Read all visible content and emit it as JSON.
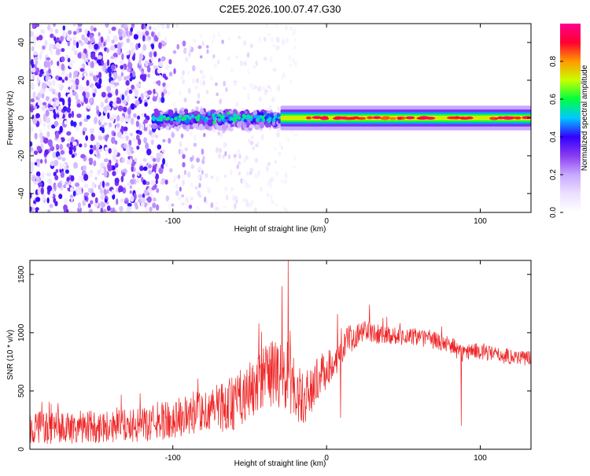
{
  "chart_data": [
    {
      "type": "heatmap",
      "title": "C2E5.2026.100.07.47.G30",
      "xlabel": "Height of straight line (km)",
      "ylabel": "Frequency (Hz)",
      "xlim": [
        -193,
        133
      ],
      "ylim": [
        -50,
        50
      ],
      "xticks": [
        -100,
        0,
        100
      ],
      "xtick_labels": [
        "-100",
        "0",
        "100"
      ],
      "yticks": [
        -40,
        -20,
        0,
        20,
        40
      ],
      "ytick_labels": [
        "-40",
        "-20",
        "0",
        "20",
        "40"
      ],
      "colorbar": {
        "label": "Normalized spectral amplitude",
        "range": [
          0,
          1
        ],
        "ticks": [
          0.0,
          0.2,
          0.4,
          0.6,
          0.8
        ],
        "tick_labels": [
          "0.0",
          "0.2",
          "0.4",
          "0.6",
          "0.8"
        ],
        "colormap_stops": [
          "#ffffff",
          "#ece0ff",
          "#c8a8ff",
          "#8a3cf0",
          "#3300ff",
          "#00c8ff",
          "#00ff40",
          "#c8ff00",
          "#ff9a00",
          "#ff0030",
          "#ff0090"
        ]
      },
      "regions": [
        {
          "name": "noise",
          "x_range": [
            -193,
            -105
          ],
          "freq_range": [
            -50,
            50
          ],
          "amplitude": 0.1
        },
        {
          "name": "sparse-noise",
          "x_range": [
            -105,
            -20
          ],
          "freq_range": [
            -50,
            50
          ],
          "amplitude": 0.04
        },
        {
          "name": "onset-cluster",
          "x_range": [
            -113,
            -30
          ],
          "freq_range": [
            -8,
            6
          ],
          "amplitude": 0.3
        },
        {
          "name": "signal-line",
          "x_range": [
            -30,
            133
          ],
          "freq_center": 0,
          "amplitude": 0.9
        }
      ]
    },
    {
      "type": "line",
      "xlabel": "Height of straight line (km)",
      "ylabel": "SNR (10 * v/v)",
      "xlim": [
        -193,
        133
      ],
      "ylim": [
        0,
        1620
      ],
      "xticks": [
        -100,
        0,
        100
      ],
      "xtick_labels": [
        "-100",
        "0",
        "100"
      ],
      "yticks": [
        0,
        500,
        1000,
        1500
      ],
      "ytick_labels": [
        "0",
        "500",
        "1000",
        "1500"
      ],
      "series": [
        {
          "name": "SNR",
          "color": "#ee2222",
          "x": [
            -193,
            -180,
            -160,
            -140,
            -120,
            -100,
            -80,
            -60,
            -45,
            -35,
            -25,
            -15,
            -5,
            5,
            15,
            25,
            35,
            50,
            65,
            80,
            88,
            95,
            110,
            133
          ],
          "y": [
            200,
            180,
            190,
            200,
            205,
            260,
            320,
            400,
            550,
            650,
            600,
            420,
            620,
            750,
            960,
            1010,
            990,
            970,
            950,
            900,
            820,
            850,
            810,
            780
          ],
          "spread": [
            230,
            230,
            230,
            230,
            230,
            280,
            330,
            380,
            420,
            480,
            520,
            360,
            300,
            220,
            180,
            150,
            140,
            120,
            120,
            120,
            120,
            110,
            110,
            110
          ],
          "spikes": [
            {
              "x": -25,
              "y": 1620
            },
            {
              "x": -29,
              "y": 1400
            },
            {
              "x": 7,
              "y": 1160
            },
            {
              "x": 9,
              "y": 270
            },
            {
              "x": 87.5,
              "y": 200
            },
            {
              "x": 28,
              "y": 1240
            },
            {
              "x": -44,
              "y": 1080
            }
          ]
        }
      ]
    }
  ]
}
